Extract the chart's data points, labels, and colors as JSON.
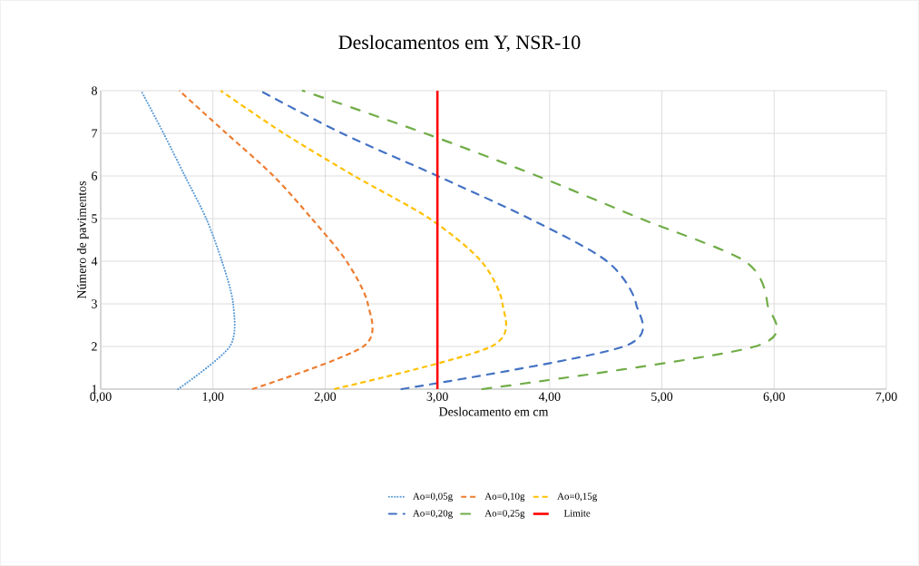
{
  "chart_data": {
    "type": "line",
    "title": "Deslocamentos em Y, NSR-10",
    "xlabel": "Deslocamento em cm",
    "ylabel": "Número de pavimentos",
    "xlim": [
      0,
      7
    ],
    "ylim": [
      1,
      8
    ],
    "xticks": [
      {
        "value": 0,
        "label": "0,00"
      },
      {
        "value": 1,
        "label": "1,00"
      },
      {
        "value": 2,
        "label": "2,00"
      },
      {
        "value": 3,
        "label": "3,00"
      },
      {
        "value": 4,
        "label": "4,00"
      },
      {
        "value": 5,
        "label": "5,00"
      },
      {
        "value": 6,
        "label": "6,00"
      },
      {
        "value": 7,
        "label": "7,00"
      }
    ],
    "yticks": [
      1,
      2,
      3,
      4,
      5,
      6,
      7,
      8
    ],
    "grid": true,
    "legend": "bottom",
    "marker": "none",
    "series": [
      {
        "name": "Ao=0,05g",
        "color": "#5b9bd5",
        "line_style": "dotted",
        "x": [
          0.69,
          1.15,
          1.18,
          1.08,
          0.94,
          0.75,
          0.56,
          0.36
        ],
        "values": [
          1,
          2,
          3,
          4,
          5,
          6,
          7,
          8
        ]
      },
      {
        "name": "Ao=0,10g",
        "color": "#ed7d31",
        "line_style": "dashed",
        "x": [
          1.35,
          2.34,
          2.38,
          2.19,
          1.88,
          1.54,
          1.12,
          0.7
        ],
        "values": [
          1,
          2,
          3,
          4,
          5,
          6,
          7,
          8
        ]
      },
      {
        "name": "Ao=0,15g",
        "color": "#ffc000",
        "line_style": "dashed",
        "x": [
          2.08,
          3.48,
          3.58,
          3.39,
          2.93,
          2.26,
          1.63,
          1.07
        ],
        "values": [
          1,
          2,
          3,
          4,
          5,
          6,
          7,
          8
        ]
      },
      {
        "name": "Ao=0,20g",
        "color": "#4472c4",
        "line_style": "dashdot",
        "x": [
          2.68,
          4.66,
          4.77,
          4.51,
          3.82,
          3.0,
          2.15,
          1.42
        ],
        "values": [
          1,
          2,
          3,
          4,
          5,
          6,
          7,
          8
        ]
      },
      {
        "name": "Ao=0,25g",
        "color": "#70ad47",
        "line_style": "dashdotdot",
        "x": [
          3.4,
          5.83,
          5.94,
          5.74,
          4.81,
          3.89,
          2.89,
          1.8
        ],
        "values": [
          1,
          2,
          3,
          4,
          5,
          6,
          7,
          8
        ]
      },
      {
        "name": "Limite",
        "color": "#ff0000",
        "line_style": "solid",
        "x": [
          3,
          3
        ],
        "values": [
          1,
          8
        ]
      }
    ]
  }
}
